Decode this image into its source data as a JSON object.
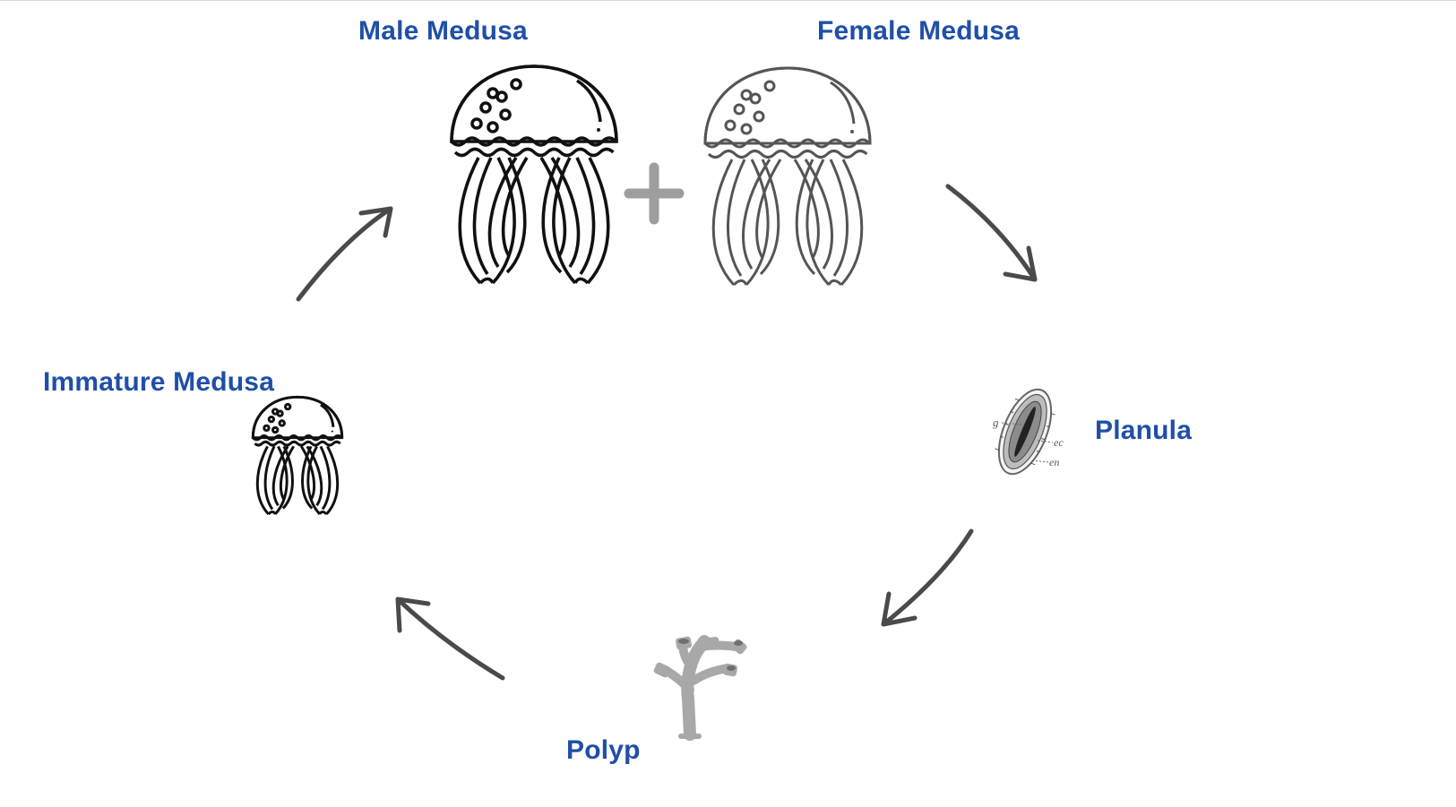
{
  "diagram": {
    "colors": {
      "label": "#1f4fa8",
      "arrow": "#4a4a4a",
      "male_outline": "#111111",
      "female_outline": "#555555",
      "plus": "#9e9e9e",
      "polyp": "#a8a8a8"
    },
    "stages": {
      "male": "Male Medusa",
      "female": "Female Medusa",
      "planula": "Planula",
      "polyp": "Polyp",
      "immature": "Immature Medusa"
    },
    "planula_annotations": [
      "g",
      "ec",
      "en"
    ],
    "icons": [
      "male-jellyfish-icon",
      "female-jellyfish-icon",
      "plus-icon",
      "planula-icon",
      "polyp-icon",
      "immature-jellyfish-icon"
    ]
  }
}
